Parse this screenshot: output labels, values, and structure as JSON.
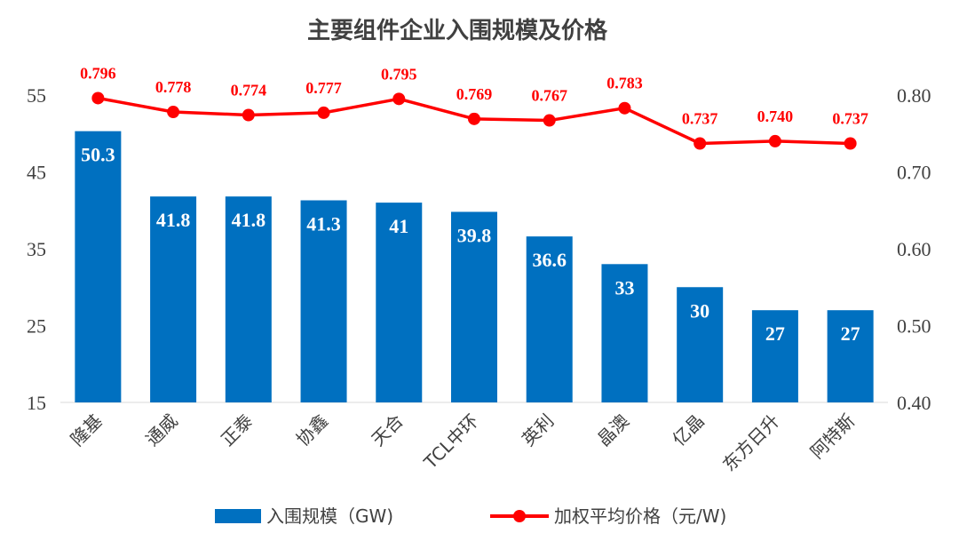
{
  "chart_data": {
    "type": "bar",
    "title": "主要组件企业入围规模及价格",
    "categories": [
      "隆基",
      "通威",
      "正泰",
      "协鑫",
      "天合",
      "TCL中环",
      "英利",
      "晶澳",
      "亿晶",
      "东方日升",
      "阿特斯"
    ],
    "series": [
      {
        "name": "入围规模（GW)",
        "type": "bar",
        "axis": "left",
        "values": [
          50.3,
          41.8,
          41.8,
          41.3,
          41,
          39.8,
          36.6,
          33,
          30,
          27,
          27
        ],
        "labels": [
          "50.3",
          "41.8",
          "41.8",
          "41.3",
          "41",
          "39.8",
          "36.6",
          "33",
          "30",
          "27",
          "27"
        ],
        "color": "#0070c0"
      },
      {
        "name": "加权平均价格（元/W)",
        "type": "line",
        "axis": "right",
        "values": [
          0.796,
          0.778,
          0.774,
          0.777,
          0.795,
          0.769,
          0.767,
          0.783,
          0.737,
          0.74,
          0.737
        ],
        "labels": [
          "0.796",
          "0.778",
          "0.774",
          "0.777",
          "0.795",
          "0.769",
          "0.767",
          "0.783",
          "0.737",
          "0.740",
          "0.737"
        ],
        "color": "#ff0000"
      }
    ],
    "y_left": {
      "range": [
        15,
        55
      ],
      "ticks": [
        "15",
        "25",
        "35",
        "45",
        "55"
      ],
      "values": [
        15,
        25,
        35,
        45,
        55
      ]
    },
    "y_right": {
      "range": [
        0.4,
        0.8
      ],
      "ticks": [
        "0.40",
        "0.50",
        "0.60",
        "0.70",
        "0.80"
      ],
      "values": [
        0.4,
        0.5,
        0.6,
        0.7,
        0.8
      ]
    },
    "grid": false,
    "legend_position": "bottom"
  }
}
